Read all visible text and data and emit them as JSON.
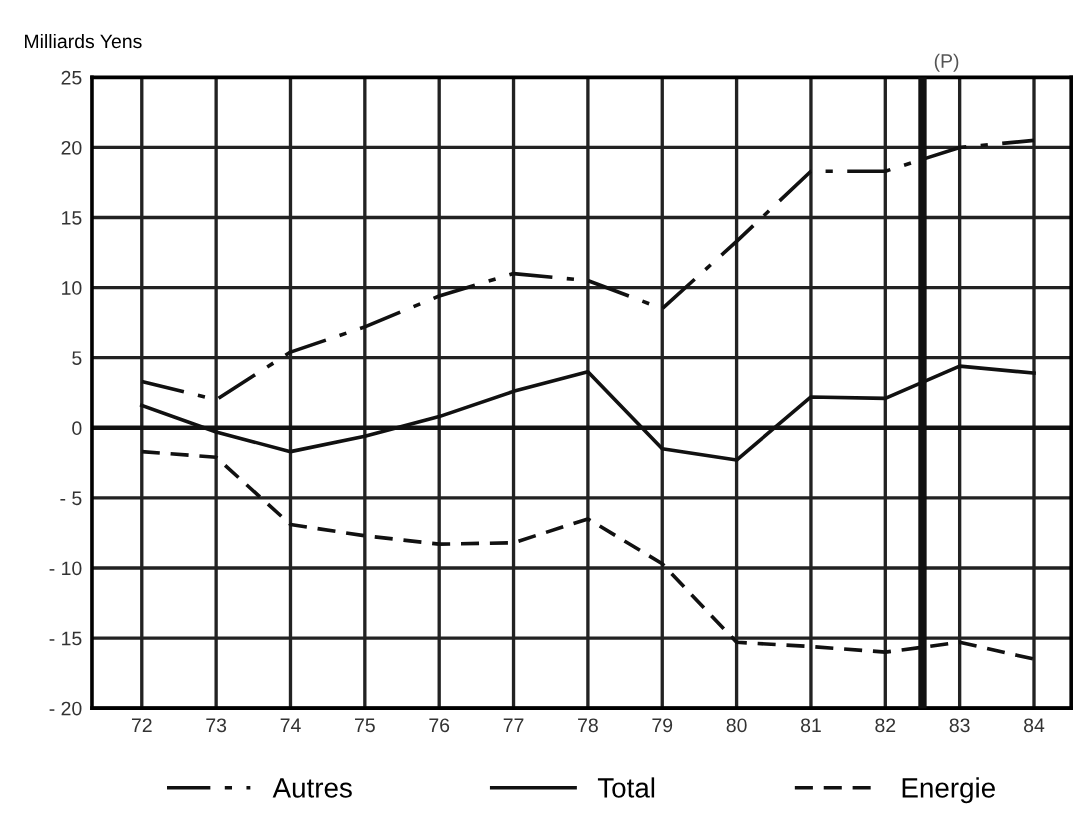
{
  "chart_data": {
    "type": "line",
    "ylabel": "Milliards Yens",
    "x": [
      72,
      73,
      74,
      75,
      76,
      77,
      78,
      79,
      80,
      81,
      82,
      83,
      84
    ],
    "series": [
      {
        "name": "Autres",
        "color": "#111111",
        "line_style": "dashdot",
        "values": [
          3.3,
          2.0,
          5.4,
          7.2,
          9.4,
          11.0,
          10.5,
          8.5,
          13.3,
          18.3,
          18.3,
          20.0,
          20.5
        ]
      },
      {
        "name": "Total",
        "color": "#111111",
        "line_style": "solid",
        "values": [
          1.6,
          -0.3,
          -1.7,
          -0.6,
          0.8,
          2.6,
          4.0,
          -1.5,
          -2.3,
          2.2,
          2.1,
          4.4,
          3.9
        ]
      },
      {
        "name": "Energie",
        "color": "#111111",
        "line_style": "dashed",
        "values": [
          -1.7,
          -2.1,
          -6.9,
          -7.7,
          -8.3,
          -8.2,
          -6.5,
          -9.7,
          -15.3,
          -15.6,
          -16.0,
          -15.3,
          -16.5
        ]
      }
    ],
    "xlim": [
      71.33,
      84.5
    ],
    "xticks": [
      72,
      73,
      74,
      75,
      76,
      77,
      78,
      79,
      80,
      81,
      82,
      83,
      84
    ],
    "ylim": [
      -20,
      25
    ],
    "yticks": [
      {
        "value": -20,
        "label": "- 20"
      },
      {
        "value": -15,
        "label": "- 15"
      },
      {
        "value": -10,
        "label": "- 10"
      },
      {
        "value": -5,
        "label": "- 5"
      },
      0,
      5,
      10,
      15,
      20,
      25
    ],
    "ref_lines": [
      {
        "axis": "x",
        "value": 82.5,
        "label": "(P)",
        "color": "#111111"
      },
      {
        "axis": "y",
        "value": 0,
        "color": "#111111"
      }
    ],
    "grid": true,
    "legend": "bottom",
    "marker": "none"
  }
}
